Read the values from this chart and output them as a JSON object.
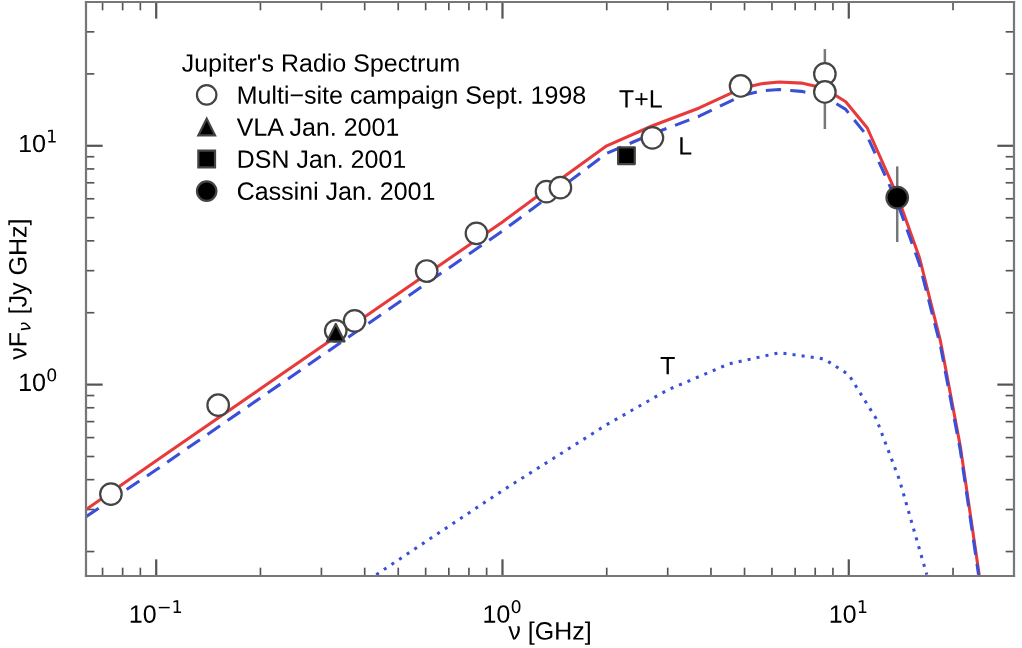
{
  "chart_data": {
    "type": "scatter",
    "xlabel": "ν [GHz]",
    "ylabel": "νF$_{ν}$ [Jy GHz]",
    "legend_title": "Jupiter's Radio Spectrum",
    "legend": "top left",
    "grid": false,
    "log": "xy",
    "xlim": [
      0.0627,
      30
    ],
    "ylim": [
      0.158,
      40
    ],
    "xticks": [
      {
        "value": 0.1,
        "label": "10$^{−1}$"
      },
      {
        "value": 1,
        "label": "10$^{0}$"
      },
      {
        "value": 10,
        "label": "10$^{1}$"
      }
    ],
    "yticks": [
      {
        "value": 1,
        "label": "10$^{0}$"
      },
      {
        "value": 10,
        "label": "10$^{1}$"
      }
    ],
    "series": [
      {
        "type": "line",
        "name": "T+L",
        "color": "#e83a3a",
        "line_style": "solid",
        "marker": "none",
        "x": [
          0.0627,
          0.1,
          0.2,
          0.5,
          1,
          1.5,
          2,
          2.7,
          3.7,
          4.9,
          5.6,
          6.3,
          7.3,
          8.5,
          9.8,
          11.3,
          13.8,
          16,
          18.4,
          21,
          23.8
        ],
        "values": [
          0.3,
          0.48,
          0.96,
          2.4,
          4.8,
          7.4,
          10,
          12.1,
          14.4,
          17.4,
          18.2,
          18.5,
          18.3,
          17.4,
          15.3,
          11.9,
          6.2,
          3.4,
          1.52,
          0.55,
          0.16
        ]
      },
      {
        "type": "line",
        "name": "L",
        "color": "#3a4fd8",
        "line_style": "dashed",
        "marker": "none",
        "x": [
          0.0627,
          0.1,
          0.2,
          0.5,
          1,
          1.5,
          2,
          2.7,
          3.7,
          4.9,
          5.6,
          6.3,
          7.3,
          8.5,
          9.8,
          11.3,
          13.8,
          16,
          18.4,
          21,
          23.7
        ],
        "values": [
          0.28,
          0.44,
          0.88,
          2.2,
          4.4,
          6.8,
          9.3,
          11.2,
          13.3,
          16.2,
          17.0,
          17.2,
          16.9,
          16.1,
          14.2,
          11.0,
          5.8,
          3.2,
          1.45,
          0.53,
          0.16
        ]
      },
      {
        "type": "line",
        "name": "T",
        "color": "#3a4fd8",
        "line_style": "dotted",
        "marker": "none",
        "x": [
          0.432,
          0.6,
          1,
          2,
          3,
          4.5,
          6.3,
          8.5,
          10,
          12,
          14,
          16.8
        ],
        "values": [
          0.16,
          0.22,
          0.36,
          0.68,
          0.95,
          1.22,
          1.36,
          1.28,
          1.1,
          0.72,
          0.4,
          0.16
        ]
      },
      {
        "name": "Multi−site campaign Sept. 1998",
        "color": "#ffffff",
        "marker": "circle",
        "x": [
          0.074,
          0.151,
          0.33,
          0.374,
          0.604,
          0.841,
          1.34,
          1.47,
          2.71,
          4.87,
          8.53,
          8.53
        ],
        "values": [
          0.348,
          0.82,
          1.68,
          1.85,
          2.99,
          4.3,
          6.43,
          6.68,
          10.8,
          17.8,
          20,
          16.8
        ],
        "errors": [
          null,
          null,
          null,
          null,
          null,
          null,
          null,
          null,
          null,
          null,
          [
            11.9,
            25.1
          ],
          null
        ]
      },
      {
        "name": "VLA Jan. 2001",
        "color": "#000000",
        "marker": "triangle",
        "x": [
          0.33
        ],
        "values": [
          1.65
        ]
      },
      {
        "name": "DSN Jan. 2001",
        "color": "#000000",
        "marker": "square",
        "x": [
          2.28
        ],
        "values": [
          9.09
        ]
      },
      {
        "name": "Cassini Jan. 2001",
        "color": "#000000",
        "marker": "circle",
        "x": [
          13.8
        ],
        "values": [
          6.07
        ],
        "errors": [
          [
            4.0,
            8.1
          ]
        ]
      }
    ]
  }
}
